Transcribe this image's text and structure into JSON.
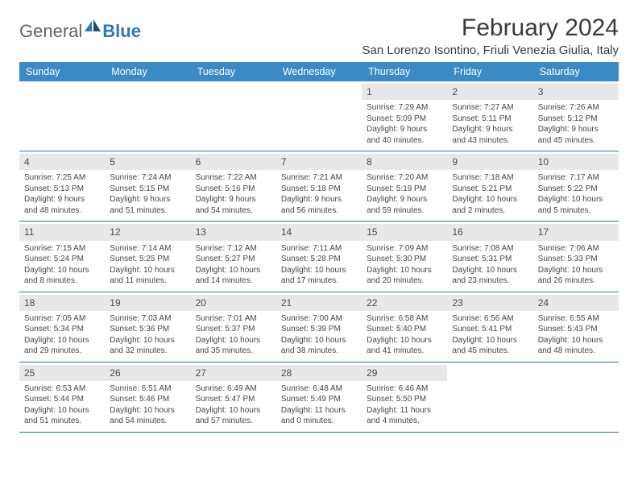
{
  "logo": {
    "text1": "General",
    "text2": "Blue"
  },
  "title": "February 2024",
  "location": "San Lorenzo Isontino, Friuli Venezia Giulia, Italy",
  "colors": {
    "header_bg": "#3a8ac6",
    "header_text": "#ffffff",
    "daynum_bg": "#e8e8e8",
    "border": "#2f6ea8",
    "logo_gray": "#636363",
    "logo_blue": "#2f77b6",
    "body_text": "#464646"
  },
  "day_headers": [
    "Sunday",
    "Monday",
    "Tuesday",
    "Wednesday",
    "Thursday",
    "Friday",
    "Saturday"
  ],
  "weeks": [
    [
      {
        "empty": true
      },
      {
        "empty": true
      },
      {
        "empty": true
      },
      {
        "empty": true
      },
      {
        "num": "1",
        "sunrise": "Sunrise: 7:29 AM",
        "sunset": "Sunset: 5:09 PM",
        "day1": "Daylight: 9 hours",
        "day2": "and 40 minutes."
      },
      {
        "num": "2",
        "sunrise": "Sunrise: 7:27 AM",
        "sunset": "Sunset: 5:11 PM",
        "day1": "Daylight: 9 hours",
        "day2": "and 43 minutes."
      },
      {
        "num": "3",
        "sunrise": "Sunrise: 7:26 AM",
        "sunset": "Sunset: 5:12 PM",
        "day1": "Daylight: 9 hours",
        "day2": "and 45 minutes."
      }
    ],
    [
      {
        "num": "4",
        "sunrise": "Sunrise: 7:25 AM",
        "sunset": "Sunset: 5:13 PM",
        "day1": "Daylight: 9 hours",
        "day2": "and 48 minutes."
      },
      {
        "num": "5",
        "sunrise": "Sunrise: 7:24 AM",
        "sunset": "Sunset: 5:15 PM",
        "day1": "Daylight: 9 hours",
        "day2": "and 51 minutes."
      },
      {
        "num": "6",
        "sunrise": "Sunrise: 7:22 AM",
        "sunset": "Sunset: 5:16 PM",
        "day1": "Daylight: 9 hours",
        "day2": "and 54 minutes."
      },
      {
        "num": "7",
        "sunrise": "Sunrise: 7:21 AM",
        "sunset": "Sunset: 5:18 PM",
        "day1": "Daylight: 9 hours",
        "day2": "and 56 minutes."
      },
      {
        "num": "8",
        "sunrise": "Sunrise: 7:20 AM",
        "sunset": "Sunset: 5:19 PM",
        "day1": "Daylight: 9 hours",
        "day2": "and 59 minutes."
      },
      {
        "num": "9",
        "sunrise": "Sunrise: 7:18 AM",
        "sunset": "Sunset: 5:21 PM",
        "day1": "Daylight: 10 hours",
        "day2": "and 2 minutes."
      },
      {
        "num": "10",
        "sunrise": "Sunrise: 7:17 AM",
        "sunset": "Sunset: 5:22 PM",
        "day1": "Daylight: 10 hours",
        "day2": "and 5 minutes."
      }
    ],
    [
      {
        "num": "11",
        "sunrise": "Sunrise: 7:15 AM",
        "sunset": "Sunset: 5:24 PM",
        "day1": "Daylight: 10 hours",
        "day2": "and 8 minutes."
      },
      {
        "num": "12",
        "sunrise": "Sunrise: 7:14 AM",
        "sunset": "Sunset: 5:25 PM",
        "day1": "Daylight: 10 hours",
        "day2": "and 11 minutes."
      },
      {
        "num": "13",
        "sunrise": "Sunrise: 7:12 AM",
        "sunset": "Sunset: 5:27 PM",
        "day1": "Daylight: 10 hours",
        "day2": "and 14 minutes."
      },
      {
        "num": "14",
        "sunrise": "Sunrise: 7:11 AM",
        "sunset": "Sunset: 5:28 PM",
        "day1": "Daylight: 10 hours",
        "day2": "and 17 minutes."
      },
      {
        "num": "15",
        "sunrise": "Sunrise: 7:09 AM",
        "sunset": "Sunset: 5:30 PM",
        "day1": "Daylight: 10 hours",
        "day2": "and 20 minutes."
      },
      {
        "num": "16",
        "sunrise": "Sunrise: 7:08 AM",
        "sunset": "Sunset: 5:31 PM",
        "day1": "Daylight: 10 hours",
        "day2": "and 23 minutes."
      },
      {
        "num": "17",
        "sunrise": "Sunrise: 7:06 AM",
        "sunset": "Sunset: 5:33 PM",
        "day1": "Daylight: 10 hours",
        "day2": "and 26 minutes."
      }
    ],
    [
      {
        "num": "18",
        "sunrise": "Sunrise: 7:05 AM",
        "sunset": "Sunset: 5:34 PM",
        "day1": "Daylight: 10 hours",
        "day2": "and 29 minutes."
      },
      {
        "num": "19",
        "sunrise": "Sunrise: 7:03 AM",
        "sunset": "Sunset: 5:36 PM",
        "day1": "Daylight: 10 hours",
        "day2": "and 32 minutes."
      },
      {
        "num": "20",
        "sunrise": "Sunrise: 7:01 AM",
        "sunset": "Sunset: 5:37 PM",
        "day1": "Daylight: 10 hours",
        "day2": "and 35 minutes."
      },
      {
        "num": "21",
        "sunrise": "Sunrise: 7:00 AM",
        "sunset": "Sunset: 5:39 PM",
        "day1": "Daylight: 10 hours",
        "day2": "and 38 minutes."
      },
      {
        "num": "22",
        "sunrise": "Sunrise: 6:58 AM",
        "sunset": "Sunset: 5:40 PM",
        "day1": "Daylight: 10 hours",
        "day2": "and 41 minutes."
      },
      {
        "num": "23",
        "sunrise": "Sunrise: 6:56 AM",
        "sunset": "Sunset: 5:41 PM",
        "day1": "Daylight: 10 hours",
        "day2": "and 45 minutes."
      },
      {
        "num": "24",
        "sunrise": "Sunrise: 6:55 AM",
        "sunset": "Sunset: 5:43 PM",
        "day1": "Daylight: 10 hours",
        "day2": "and 48 minutes."
      }
    ],
    [
      {
        "num": "25",
        "sunrise": "Sunrise: 6:53 AM",
        "sunset": "Sunset: 5:44 PM",
        "day1": "Daylight: 10 hours",
        "day2": "and 51 minutes."
      },
      {
        "num": "26",
        "sunrise": "Sunrise: 6:51 AM",
        "sunset": "Sunset: 5:46 PM",
        "day1": "Daylight: 10 hours",
        "day2": "and 54 minutes."
      },
      {
        "num": "27",
        "sunrise": "Sunrise: 6:49 AM",
        "sunset": "Sunset: 5:47 PM",
        "day1": "Daylight: 10 hours",
        "day2": "and 57 minutes."
      },
      {
        "num": "28",
        "sunrise": "Sunrise: 6:48 AM",
        "sunset": "Sunset: 5:49 PM",
        "day1": "Daylight: 11 hours",
        "day2": "and 0 minutes."
      },
      {
        "num": "29",
        "sunrise": "Sunrise: 6:46 AM",
        "sunset": "Sunset: 5:50 PM",
        "day1": "Daylight: 11 hours",
        "day2": "and 4 minutes."
      },
      {
        "empty": true
      },
      {
        "empty": true
      }
    ]
  ]
}
